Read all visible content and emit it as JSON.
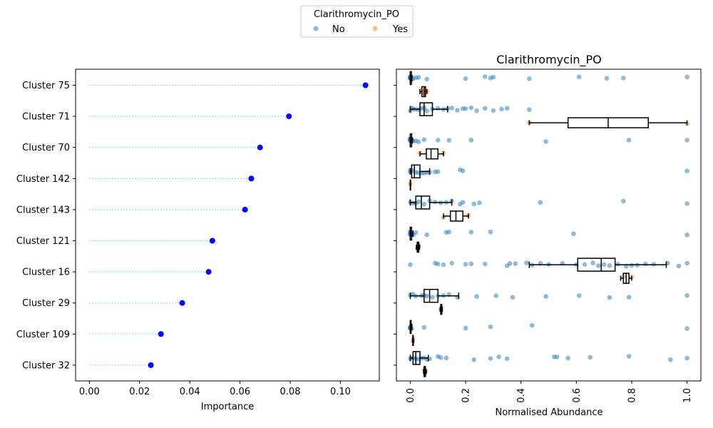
{
  "legend": {
    "title": "Clarithromycin_PO",
    "items": [
      {
        "label": "No",
        "color": "#1f77b4"
      },
      {
        "label": "Yes",
        "color": "#ff7f0e"
      }
    ]
  },
  "chart_data": [
    {
      "type": "dot",
      "title": "",
      "xlabel": "Importance",
      "ylabel": "",
      "xlim": [
        -0.0055,
        0.1155
      ],
      "xticks": [
        0.0,
        0.02,
        0.04,
        0.06,
        0.08,
        0.1
      ],
      "xtick_labels": [
        "0.00",
        "0.02",
        "0.04",
        "0.06",
        "0.08",
        "0.10"
      ],
      "grid": false,
      "categories": [
        "Cluster 75",
        "Cluster 71",
        "Cluster 70",
        "Cluster 142",
        "Cluster 143",
        "Cluster 121",
        "Cluster 16",
        "Cluster 29",
        "Cluster 109",
        "Cluster 32"
      ],
      "values": [
        0.11,
        0.0795,
        0.068,
        0.0645,
        0.062,
        0.049,
        0.0475,
        0.037,
        0.0285,
        0.0245
      ],
      "marker_color": "#0000ff",
      "line_color": "#87ceeb"
    },
    {
      "type": "box",
      "title": "Clarithromycin_PO",
      "xlabel": "Normalised Abundance",
      "ylabel": "",
      "xlim": [
        -0.05,
        1.05
      ],
      "xticks": [
        0.0,
        0.2,
        0.4,
        0.6,
        0.8,
        1.0
      ],
      "xtick_labels": [
        "0.0",
        "0.2",
        "0.4",
        "0.6",
        "0.8",
        "1.0"
      ],
      "grid": false,
      "categories": [
        "Cluster 75",
        "Cluster 71",
        "Cluster 70",
        "Cluster 142",
        "Cluster 143",
        "Cluster 121",
        "Cluster 16",
        "Cluster 29",
        "Cluster 109",
        "Cluster 32"
      ],
      "groups": [
        "No",
        "Yes"
      ],
      "boxes": [
        {
          "No": {
            "whislo": 0.0,
            "q1": 0.0,
            "med": 0.0,
            "q3": 0.004,
            "whishi": 0.006
          },
          "Yes": {
            "whislo": 0.035,
            "q1": 0.042,
            "med": 0.05,
            "q3": 0.055,
            "whishi": 0.06
          }
        },
        {
          "No": {
            "whislo": 0.0,
            "q1": 0.035,
            "med": 0.05,
            "q3": 0.08,
            "whishi": 0.135
          },
          "Yes": {
            "whislo": 0.43,
            "q1": 0.57,
            "med": 0.715,
            "q3": 0.86,
            "whishi": 1.0
          }
        },
        {
          "No": {
            "whislo": 0.0,
            "q1": 0.0,
            "med": 0.0,
            "q3": 0.005,
            "whishi": 0.008
          },
          "Yes": {
            "whislo": 0.035,
            "q1": 0.058,
            "med": 0.075,
            "q3": 0.1,
            "whishi": 0.12
          }
        },
        {
          "No": {
            "whislo": 0.0,
            "q1": 0.005,
            "med": 0.015,
            "q3": 0.035,
            "whishi": 0.07
          },
          "Yes": {
            "whislo": 0.0,
            "q1": 0.0,
            "med": 0.0,
            "q3": 0.0,
            "whishi": 0.0
          }
        },
        {
          "No": {
            "whislo": 0.0,
            "q1": 0.02,
            "med": 0.04,
            "q3": 0.07,
            "whishi": 0.15
          },
          "Yes": {
            "whislo": 0.12,
            "q1": 0.145,
            "med": 0.165,
            "q3": 0.19,
            "whishi": 0.21
          }
        },
        {
          "No": {
            "whislo": 0.0,
            "q1": 0.0,
            "med": 0.0,
            "q3": 0.005,
            "whishi": 0.01
          },
          "Yes": {
            "whislo": 0.022,
            "q1": 0.025,
            "med": 0.028,
            "q3": 0.031,
            "whishi": 0.034
          }
        },
        {
          "No": {
            "whislo": 0.43,
            "q1": 0.605,
            "med": 0.69,
            "q3": 0.74,
            "whishi": 0.925
          },
          "Yes": {
            "whislo": 0.76,
            "q1": 0.77,
            "med": 0.78,
            "q3": 0.79,
            "whishi": 0.8
          }
        },
        {
          "No": {
            "whislo": 0.0,
            "q1": 0.05,
            "med": 0.07,
            "q3": 0.1,
            "whishi": 0.175
          },
          "Yes": {
            "whislo": 0.108,
            "q1": 0.11,
            "med": 0.112,
            "q3": 0.114,
            "whishi": 0.116
          }
        },
        {
          "No": {
            "whislo": 0.0,
            "q1": 0.0,
            "med": 0.0,
            "q3": 0.003,
            "whishi": 0.006
          },
          "Yes": {
            "whislo": 0.008,
            "q1": 0.009,
            "med": 0.01,
            "q3": 0.011,
            "whishi": 0.012
          }
        },
        {
          "No": {
            "whislo": 0.0,
            "q1": 0.01,
            "med": 0.02,
            "q3": 0.035,
            "whishi": 0.065
          },
          "Yes": {
            "whislo": 0.048,
            "q1": 0.05,
            "med": 0.052,
            "q3": 0.055,
            "whishi": 0.058
          }
        }
      ],
      "points": [
        {
          "No": [
            0.0,
            0.0,
            0.0,
            0.0,
            0.0,
            0.0,
            0.003,
            0.005,
            0.01,
            0.02,
            0.03,
            0.06,
            0.2,
            0.27,
            0.29,
            0.3,
            0.43,
            0.61,
            0.71,
            0.77,
            1.0
          ],
          "Yes": [
            0.04,
            0.045,
            0.05,
            0.055,
            0.06
          ]
        },
        {
          "No": [
            0.0,
            0.005,
            0.01,
            0.02,
            0.03,
            0.04,
            0.05,
            0.06,
            0.08,
            0.1,
            0.12,
            0.135,
            0.15,
            0.17,
            0.19,
            0.2,
            0.22,
            0.24,
            0.27,
            0.3,
            0.33,
            0.35,
            0.43
          ],
          "Yes": [
            0.43,
            1.0
          ]
        },
        {
          "No": [
            0.0,
            0.0,
            0.0,
            0.0,
            0.0,
            0.0,
            0.005,
            0.01,
            0.02,
            0.03,
            0.05,
            0.1,
            0.14,
            0.22,
            0.49,
            0.79,
            1.0
          ],
          "Yes": [
            0.035,
            0.12
          ]
        },
        {
          "No": [
            0.0,
            0.0,
            0.01,
            0.02,
            0.03,
            0.04,
            0.05,
            0.06,
            0.07,
            0.09,
            0.1,
            0.18,
            0.19,
            1.0
          ],
          "Yes": [
            0.0
          ]
        },
        {
          "No": [
            0.0,
            0.01,
            0.02,
            0.03,
            0.05,
            0.07,
            0.09,
            0.11,
            0.13,
            0.15,
            0.18,
            0.19,
            0.23,
            0.25,
            0.47,
            0.77,
            1.0
          ],
          "Yes": [
            0.12,
            0.21
          ]
        },
        {
          "No": [
            0.0,
            0.0,
            0.0,
            0.0,
            0.005,
            0.01,
            0.02,
            0.06,
            0.13,
            0.14,
            0.22,
            0.29,
            0.59,
            1.0
          ],
          "Yes": [
            0.025,
            0.03
          ]
        },
        {
          "No": [
            0.0,
            0.09,
            0.1,
            0.12,
            0.15,
            0.2,
            0.22,
            0.27,
            0.35,
            0.36,
            0.38,
            0.42,
            0.44,
            0.47,
            0.5,
            0.55,
            0.6,
            0.63,
            0.66,
            0.68,
            0.7,
            0.72,
            0.75,
            0.78,
            0.8,
            0.82,
            0.85,
            0.88,
            0.93,
            0.97,
            1.0
          ],
          "Yes": [
            0.77,
            0.8
          ]
        },
        {
          "No": [
            0.0,
            0.01,
            0.02,
            0.04,
            0.05,
            0.06,
            0.08,
            0.1,
            0.12,
            0.14,
            0.17,
            0.24,
            0.31,
            0.37,
            0.49,
            0.61,
            0.72,
            0.79,
            1.0
          ],
          "Yes": [
            0.11
          ]
        },
        {
          "No": [
            0.0,
            0.0,
            0.0,
            0.0,
            0.005,
            0.05,
            0.2,
            0.29,
            0.44,
            1.0
          ],
          "Yes": [
            0.01
          ]
        },
        {
          "No": [
            0.0,
            0.01,
            0.02,
            0.03,
            0.04,
            0.05,
            0.06,
            0.07,
            0.1,
            0.11,
            0.13,
            0.23,
            0.29,
            0.32,
            0.35,
            0.52,
            0.53,
            0.57,
            0.65,
            0.79,
            0.94,
            1.0
          ],
          "Yes": [
            0.05,
            0.055
          ]
        }
      ]
    }
  ]
}
